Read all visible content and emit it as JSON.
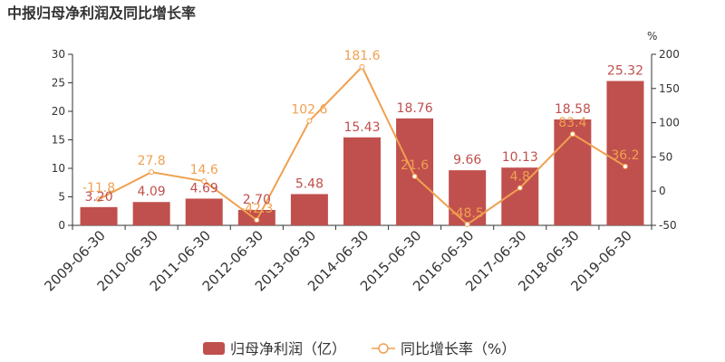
{
  "chart_data": {
    "type": "bar",
    "title": "中报归母净利润及同比增长率",
    "categories": [
      "2009-06-30",
      "2010-06-30",
      "2011-06-30",
      "2012-06-30",
      "2013-06-30",
      "2014-06-30",
      "2015-06-30",
      "2016-06-30",
      "2017-06-30",
      "2018-06-30",
      "2019-06-30"
    ],
    "series": [
      {
        "name": "归母净利润（亿）",
        "type": "bar",
        "axis": "left",
        "values": [
          3.2,
          4.09,
          4.69,
          2.7,
          5.48,
          15.43,
          18.76,
          9.66,
          10.13,
          18.58,
          25.32
        ],
        "labels": [
          "3.20",
          "4.09",
          "4.69",
          "2.70",
          "5.48",
          "15.43",
          "18.76",
          "9.66",
          "10.13",
          "18.58",
          "25.32"
        ]
      },
      {
        "name": "同比增长率（%）",
        "type": "line",
        "axis": "right",
        "values": [
          -11.8,
          27.8,
          14.6,
          -42.3,
          102.6,
          181.6,
          21.6,
          -48.5,
          4.8,
          83.4,
          36.2
        ],
        "labels": [
          "-11.8",
          "27.8",
          "14.6",
          "-42.3",
          "102.6",
          "181.6",
          "21.6",
          "-48.5",
          "4.8",
          "83.4",
          "36.2"
        ]
      }
    ],
    "y_left": {
      "min": 0,
      "max": 30,
      "ticks": [
        "0",
        "5",
        "10",
        "15",
        "20",
        "25",
        "30"
      ],
      "tick_values": [
        0,
        5,
        10,
        15,
        20,
        25,
        30
      ]
    },
    "y_right": {
      "min": -50,
      "max": 200,
      "unit": "%",
      "ticks": [
        "-50",
        "0",
        "50",
        "100",
        "150",
        "200"
      ],
      "tick_values": [
        -50,
        0,
        50,
        100,
        150,
        200
      ]
    },
    "grid": false,
    "legend_position": "bottom-center",
    "colors": {
      "bar": "#c0504d",
      "bar_label": "#c0504d",
      "line": "#f0a050",
      "line_label": "#f0a050",
      "axis": "#333333"
    }
  }
}
